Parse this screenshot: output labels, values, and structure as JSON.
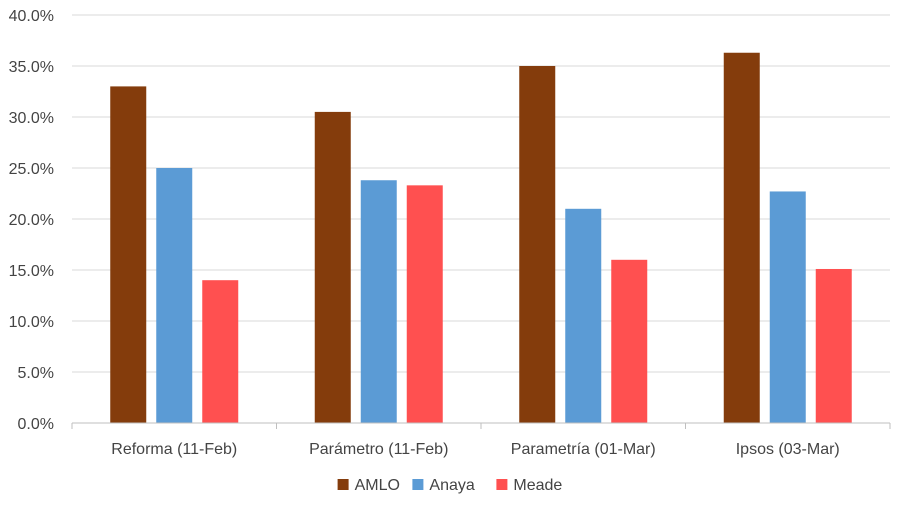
{
  "chart_data": {
    "type": "bar",
    "title": "",
    "xlabel": "",
    "ylabel": "",
    "categories": [
      "Reforma (11-Feb)",
      "Parámetro (11-Feb)",
      "Parametría (01-Mar)",
      "Ipsos (03-Mar)"
    ],
    "series": [
      {
        "name": "AMLO",
        "values": [
          33.0,
          30.5,
          35.0,
          36.3
        ],
        "color": "#843C0C"
      },
      {
        "name": "Anaya",
        "values": [
          25.0,
          23.8,
          21.0,
          22.7
        ],
        "color": "#5B9BD5"
      },
      {
        "name": "Meade",
        "values": [
          14.0,
          23.3,
          16.0,
          15.1
        ],
        "color": "#FF5050"
      }
    ],
    "ylim": [
      0,
      40
    ],
    "yticks": [
      "0.0%",
      "5.0%",
      "10.0%",
      "15.0%",
      "20.0%",
      "25.0%",
      "30.0%",
      "35.0%",
      "40.0%"
    ],
    "grid": true,
    "legend_position": "bottom"
  }
}
